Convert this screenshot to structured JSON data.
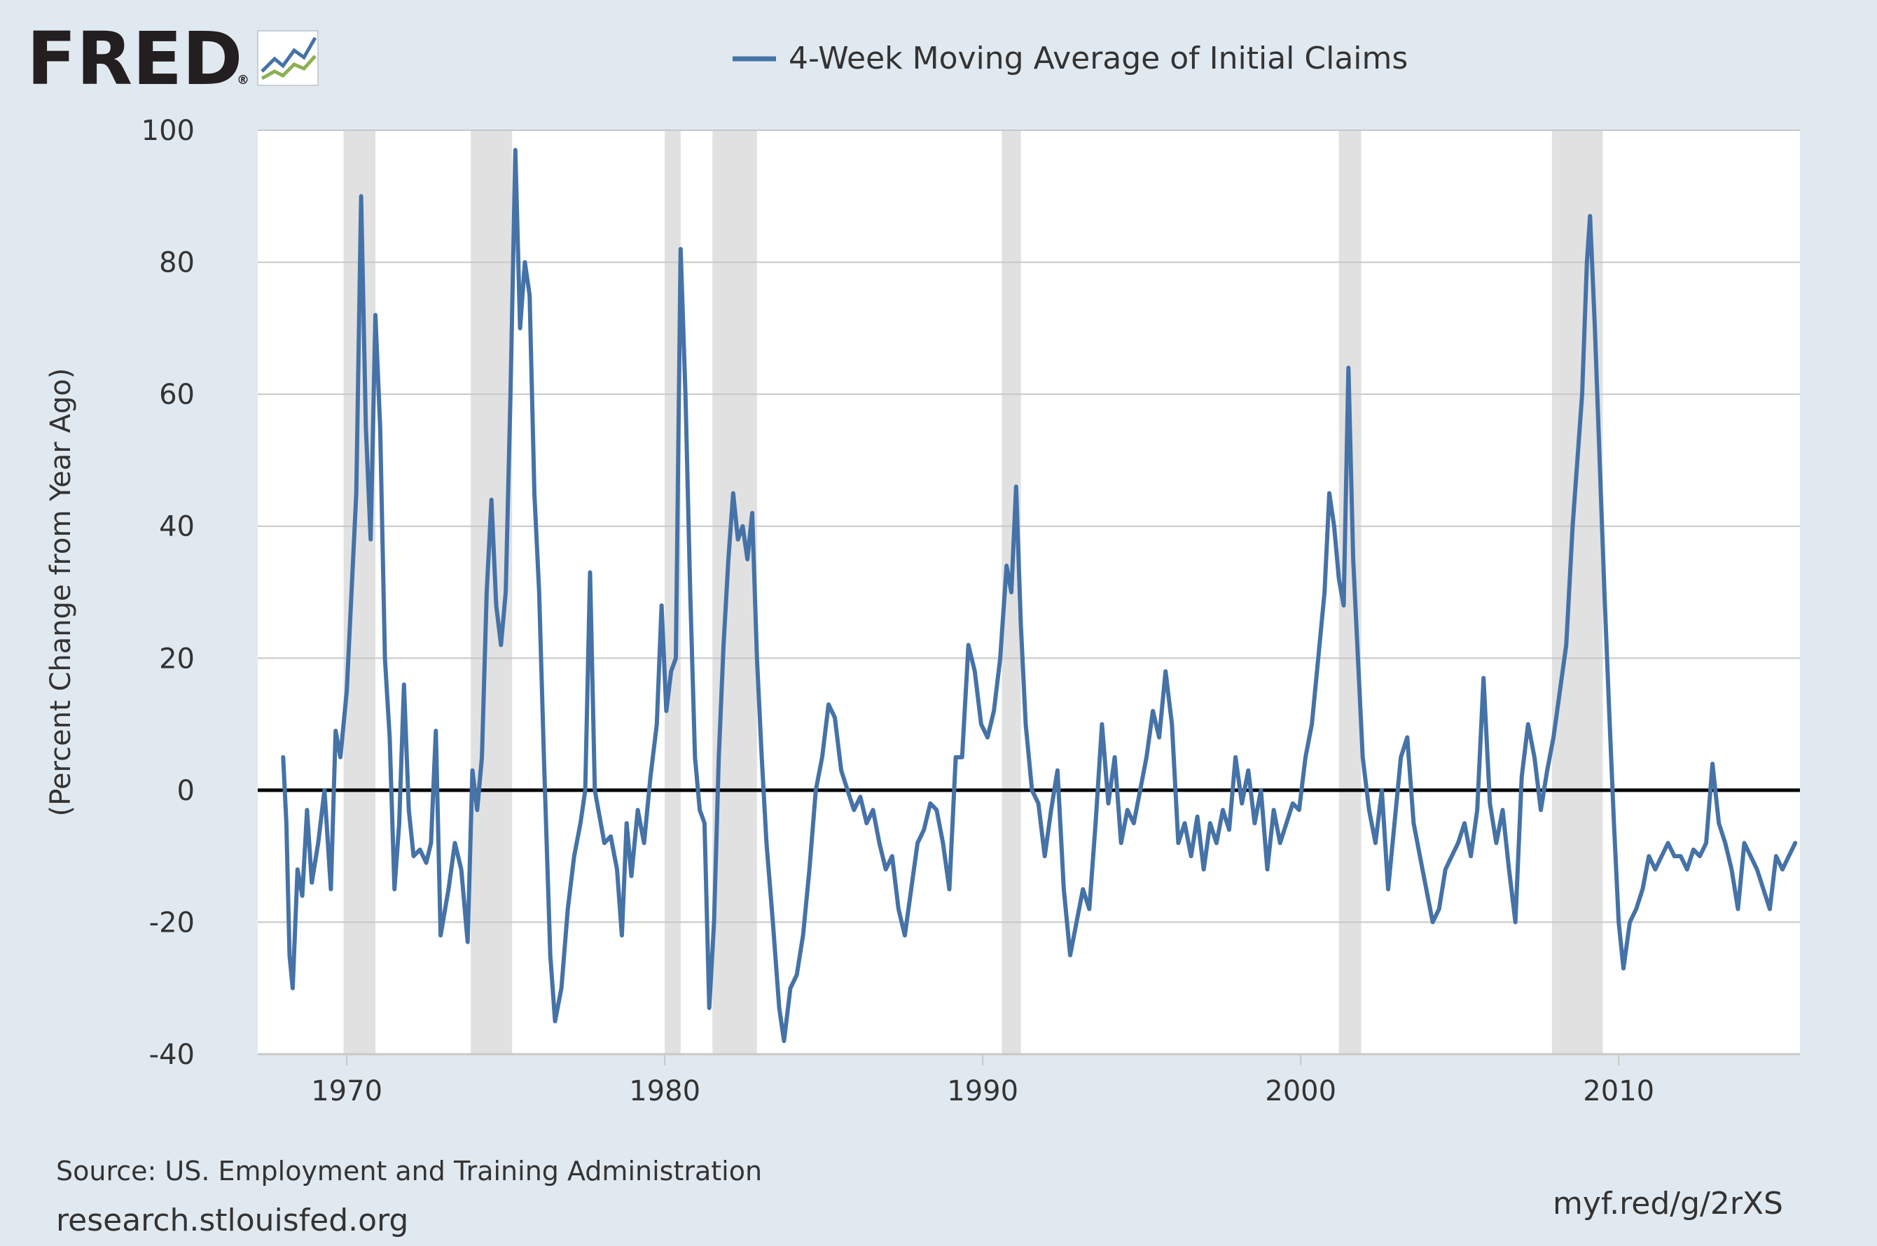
{
  "logo": {
    "text": "FRED",
    "registered": "®"
  },
  "colors": {
    "background": "#e1e9f0",
    "plot_background": "#ffffff",
    "series": "#4572a7",
    "recession": "#e1e1e1",
    "grid": "#c8c8c8",
    "zero_line": "#000000",
    "text": "#333333"
  },
  "footer": {
    "source": "Source: US. Employment and Training Administration",
    "site": "research.stlouisfed.org",
    "short_link": "myf.red/g/2rXS"
  },
  "chart_data": {
    "type": "line",
    "title": "",
    "xlabel": "",
    "ylabel": "(Percent Change from Year Ago)",
    "xlim": [
      1967.2,
      2015.7
    ],
    "ylim": [
      -40,
      100
    ],
    "y_ticks": [
      100,
      80,
      60,
      40,
      20,
      0,
      -20,
      -40
    ],
    "y_tick_labels": [
      "100",
      "80",
      "60",
      "40",
      "20",
      "0",
      "-20",
      "-40"
    ],
    "x_ticks": [
      1970,
      1980,
      1990,
      2000,
      2010
    ],
    "x_tick_labels": [
      "1970",
      "1980",
      "1990",
      "2000",
      "2010"
    ],
    "grid": "horizontal",
    "legend_position": "top-center",
    "reference_line": 0,
    "recessions": [
      [
        1969.9,
        1970.9
      ],
      [
        1973.9,
        1975.2
      ],
      [
        1980.0,
        1980.5
      ],
      [
        1981.5,
        1982.9
      ],
      [
        1990.6,
        1991.2
      ],
      [
        2001.2,
        2001.9
      ],
      [
        2007.9,
        2009.5
      ]
    ],
    "series": [
      {
        "name": "4-Week Moving Average of Initial Claims",
        "points": [
          [
            1968.0,
            5
          ],
          [
            1968.1,
            -5
          ],
          [
            1968.2,
            -25
          ],
          [
            1968.3,
            -30
          ],
          [
            1968.45,
            -12
          ],
          [
            1968.6,
            -16
          ],
          [
            1968.75,
            -3
          ],
          [
            1968.9,
            -14
          ],
          [
            1969.1,
            -8
          ],
          [
            1969.3,
            0
          ],
          [
            1969.5,
            -15
          ],
          [
            1969.65,
            9
          ],
          [
            1969.8,
            5
          ],
          [
            1970.0,
            15
          ],
          [
            1970.15,
            30
          ],
          [
            1970.3,
            45
          ],
          [
            1970.45,
            90
          ],
          [
            1970.6,
            55
          ],
          [
            1970.75,
            38
          ],
          [
            1970.9,
            72
          ],
          [
            1971.05,
            55
          ],
          [
            1971.2,
            20
          ],
          [
            1971.35,
            8
          ],
          [
            1971.5,
            -15
          ],
          [
            1971.65,
            -5
          ],
          [
            1971.8,
            16
          ],
          [
            1971.95,
            -3
          ],
          [
            1972.1,
            -10
          ],
          [
            1972.3,
            -9
          ],
          [
            1972.5,
            -11
          ],
          [
            1972.65,
            -8
          ],
          [
            1972.8,
            9
          ],
          [
            1972.95,
            -22
          ],
          [
            1973.2,
            -15
          ],
          [
            1973.4,
            -8
          ],
          [
            1973.6,
            -12
          ],
          [
            1973.8,
            -23
          ],
          [
            1973.95,
            3
          ],
          [
            1974.1,
            -3
          ],
          [
            1974.25,
            5
          ],
          [
            1974.4,
            30
          ],
          [
            1974.55,
            44
          ],
          [
            1974.7,
            28
          ],
          [
            1974.85,
            22
          ],
          [
            1975.0,
            30
          ],
          [
            1975.15,
            60
          ],
          [
            1975.3,
            97
          ],
          [
            1975.45,
            70
          ],
          [
            1975.6,
            80
          ],
          [
            1975.75,
            75
          ],
          [
            1975.9,
            45
          ],
          [
            1976.05,
            30
          ],
          [
            1976.2,
            5
          ],
          [
            1976.4,
            -25
          ],
          [
            1976.55,
            -35
          ],
          [
            1976.75,
            -30
          ],
          [
            1976.95,
            -18
          ],
          [
            1977.15,
            -10
          ],
          [
            1977.35,
            -5
          ],
          [
            1977.5,
            0
          ],
          [
            1977.65,
            33
          ],
          [
            1977.8,
            0
          ],
          [
            1977.95,
            -4
          ],
          [
            1978.1,
            -8
          ],
          [
            1978.3,
            -7
          ],
          [
            1978.5,
            -12
          ],
          [
            1978.65,
            -22
          ],
          [
            1978.8,
            -5
          ],
          [
            1978.95,
            -13
          ],
          [
            1979.15,
            -3
          ],
          [
            1979.35,
            -8
          ],
          [
            1979.55,
            2
          ],
          [
            1979.75,
            10
          ],
          [
            1979.9,
            28
          ],
          [
            1980.05,
            12
          ],
          [
            1980.2,
            18
          ],
          [
            1980.35,
            20
          ],
          [
            1980.5,
            82
          ],
          [
            1980.65,
            60
          ],
          [
            1980.8,
            30
          ],
          [
            1980.95,
            5
          ],
          [
            1981.1,
            -3
          ],
          [
            1981.25,
            -5
          ],
          [
            1981.4,
            -33
          ],
          [
            1981.55,
            -20
          ],
          [
            1981.7,
            5
          ],
          [
            1981.85,
            22
          ],
          [
            1982.0,
            35
          ],
          [
            1982.15,
            45
          ],
          [
            1982.3,
            38
          ],
          [
            1982.45,
            40
          ],
          [
            1982.6,
            35
          ],
          [
            1982.75,
            42
          ],
          [
            1982.9,
            20
          ],
          [
            1983.05,
            5
          ],
          [
            1983.2,
            -8
          ],
          [
            1983.4,
            -20
          ],
          [
            1983.6,
            -33
          ],
          [
            1983.75,
            -38
          ],
          [
            1983.95,
            -30
          ],
          [
            1984.15,
            -28
          ],
          [
            1984.35,
            -22
          ],
          [
            1984.55,
            -12
          ],
          [
            1984.75,
            0
          ],
          [
            1984.95,
            5
          ],
          [
            1985.15,
            13
          ],
          [
            1985.35,
            11
          ],
          [
            1985.55,
            3
          ],
          [
            1985.75,
            0
          ],
          [
            1985.95,
            -3
          ],
          [
            1986.15,
            -1
          ],
          [
            1986.35,
            -5
          ],
          [
            1986.55,
            -3
          ],
          [
            1986.75,
            -8
          ],
          [
            1986.95,
            -12
          ],
          [
            1987.15,
            -10
          ],
          [
            1987.35,
            -18
          ],
          [
            1987.55,
            -22
          ],
          [
            1987.75,
            -15
          ],
          [
            1987.95,
            -8
          ],
          [
            1988.15,
            -6
          ],
          [
            1988.35,
            -2
          ],
          [
            1988.55,
            -3
          ],
          [
            1988.75,
            -8
          ],
          [
            1988.95,
            -15
          ],
          [
            1989.15,
            5
          ],
          [
            1989.35,
            5
          ],
          [
            1989.55,
            22
          ],
          [
            1989.75,
            18
          ],
          [
            1989.95,
            10
          ],
          [
            1990.15,
            8
          ],
          [
            1990.35,
            12
          ],
          [
            1990.55,
            20
          ],
          [
            1990.75,
            34
          ],
          [
            1990.9,
            30
          ],
          [
            1991.05,
            46
          ],
          [
            1991.2,
            25
          ],
          [
            1991.35,
            10
          ],
          [
            1991.55,
            0
          ],
          [
            1991.75,
            -2
          ],
          [
            1991.95,
            -10
          ],
          [
            1992.15,
            -3
          ],
          [
            1992.35,
            3
          ],
          [
            1992.55,
            -15
          ],
          [
            1992.75,
            -25
          ],
          [
            1992.95,
            -20
          ],
          [
            1993.15,
            -15
          ],
          [
            1993.35,
            -18
          ],
          [
            1993.55,
            -5
          ],
          [
            1993.75,
            10
          ],
          [
            1993.95,
            -2
          ],
          [
            1994.15,
            5
          ],
          [
            1994.35,
            -8
          ],
          [
            1994.55,
            -3
          ],
          [
            1994.75,
            -5
          ],
          [
            1994.95,
            0
          ],
          [
            1995.15,
            5
          ],
          [
            1995.35,
            12
          ],
          [
            1995.55,
            8
          ],
          [
            1995.75,
            18
          ],
          [
            1995.95,
            10
          ],
          [
            1996.15,
            -8
          ],
          [
            1996.35,
            -5
          ],
          [
            1996.55,
            -10
          ],
          [
            1996.75,
            -4
          ],
          [
            1996.95,
            -12
          ],
          [
            1997.15,
            -5
          ],
          [
            1997.35,
            -8
          ],
          [
            1997.55,
            -3
          ],
          [
            1997.75,
            -6
          ],
          [
            1997.95,
            5
          ],
          [
            1998.15,
            -2
          ],
          [
            1998.35,
            3
          ],
          [
            1998.55,
            -5
          ],
          [
            1998.75,
            0
          ],
          [
            1998.95,
            -12
          ],
          [
            1999.15,
            -3
          ],
          [
            1999.35,
            -8
          ],
          [
            1999.55,
            -5
          ],
          [
            1999.75,
            -2
          ],
          [
            1999.95,
            -3
          ],
          [
            2000.15,
            5
          ],
          [
            2000.35,
            10
          ],
          [
            2000.55,
            20
          ],
          [
            2000.75,
            30
          ],
          [
            2000.9,
            45
          ],
          [
            2001.05,
            40
          ],
          [
            2001.2,
            32
          ],
          [
            2001.35,
            28
          ],
          [
            2001.5,
            64
          ],
          [
            2001.65,
            35
          ],
          [
            2001.8,
            20
          ],
          [
            2001.95,
            5
          ],
          [
            2002.15,
            -3
          ],
          [
            2002.35,
            -8
          ],
          [
            2002.55,
            0
          ],
          [
            2002.75,
            -15
          ],
          [
            2002.95,
            -5
          ],
          [
            2003.15,
            5
          ],
          [
            2003.35,
            8
          ],
          [
            2003.55,
            -5
          ],
          [
            2003.75,
            -10
          ],
          [
            2003.95,
            -15
          ],
          [
            2004.15,
            -20
          ],
          [
            2004.35,
            -18
          ],
          [
            2004.55,
            -12
          ],
          [
            2004.75,
            -10
          ],
          [
            2004.95,
            -8
          ],
          [
            2005.15,
            -5
          ],
          [
            2005.35,
            -10
          ],
          [
            2005.55,
            -3
          ],
          [
            2005.75,
            17
          ],
          [
            2005.95,
            -2
          ],
          [
            2006.15,
            -8
          ],
          [
            2006.35,
            -3
          ],
          [
            2006.55,
            -12
          ],
          [
            2006.75,
            -20
          ],
          [
            2006.95,
            2
          ],
          [
            2007.15,
            10
          ],
          [
            2007.35,
            5
          ],
          [
            2007.55,
            -3
          ],
          [
            2007.75,
            3
          ],
          [
            2007.95,
            8
          ],
          [
            2008.15,
            15
          ],
          [
            2008.35,
            22
          ],
          [
            2008.55,
            40
          ],
          [
            2008.7,
            50
          ],
          [
            2008.85,
            60
          ],
          [
            2009.0,
            80
          ],
          [
            2009.1,
            87
          ],
          [
            2009.25,
            70
          ],
          [
            2009.4,
            50
          ],
          [
            2009.55,
            30
          ],
          [
            2009.7,
            12
          ],
          [
            2009.85,
            -5
          ],
          [
            2010.0,
            -20
          ],
          [
            2010.15,
            -27
          ],
          [
            2010.35,
            -20
          ],
          [
            2010.55,
            -18
          ],
          [
            2010.75,
            -15
          ],
          [
            2010.95,
            -10
          ],
          [
            2011.15,
            -12
          ],
          [
            2011.35,
            -10
          ],
          [
            2011.55,
            -8
          ],
          [
            2011.75,
            -10
          ],
          [
            2011.95,
            -10
          ],
          [
            2012.15,
            -12
          ],
          [
            2012.35,
            -9
          ],
          [
            2012.55,
            -10
          ],
          [
            2012.75,
            -8
          ],
          [
            2012.95,
            4
          ],
          [
            2013.15,
            -5
          ],
          [
            2013.35,
            -8
          ],
          [
            2013.55,
            -12
          ],
          [
            2013.75,
            -18
          ],
          [
            2013.95,
            -8
          ],
          [
            2014.15,
            -10
          ],
          [
            2014.35,
            -12
          ],
          [
            2014.55,
            -15
          ],
          [
            2014.75,
            -18
          ],
          [
            2014.95,
            -10
          ],
          [
            2015.15,
            -12
          ],
          [
            2015.35,
            -10
          ],
          [
            2015.55,
            -8
          ]
        ]
      }
    ]
  }
}
